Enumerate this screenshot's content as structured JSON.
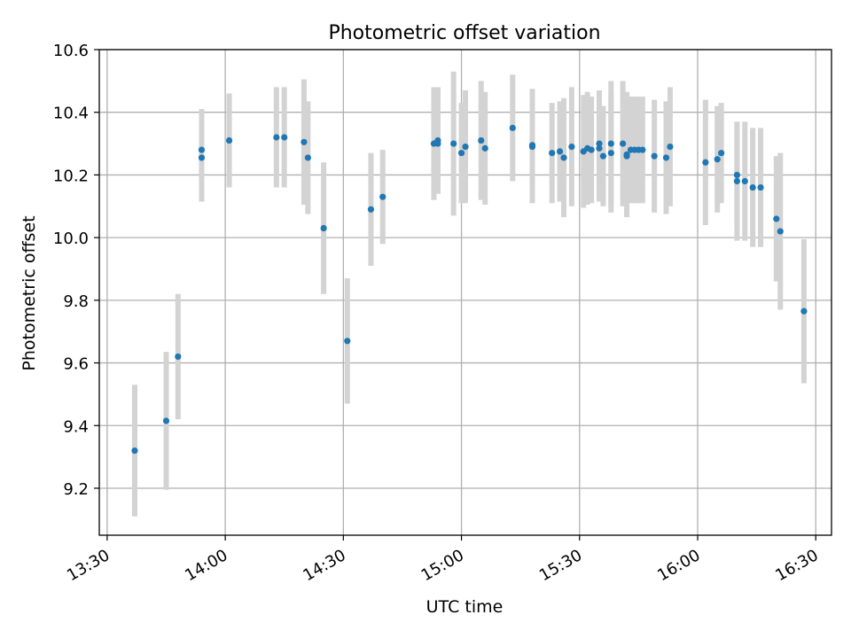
{
  "chart_data": {
    "type": "scatter",
    "title": "Photometric offset variation",
    "xlabel": "UTC time",
    "ylabel": "Photometric offset",
    "xlim": [
      "13:28",
      "16:34"
    ],
    "ylim": [
      9.05,
      10.6
    ],
    "x_ticks": [
      "13:30",
      "14:00",
      "14:30",
      "15:00",
      "15:30",
      "16:00",
      "16:30"
    ],
    "y_ticks": [
      "9.2",
      "9.4",
      "9.6",
      "9.8",
      "10.0",
      "10.2",
      "10.4",
      "10.6"
    ],
    "grid": true,
    "colors": {
      "point": "#1f77b4",
      "errorbar": "#d3d3d3",
      "grid": "#b0b0b0"
    },
    "points": [
      {
        "x": "13:37",
        "y": 9.32,
        "err": 0.21
      },
      {
        "x": "13:45",
        "y": 9.415,
        "err": 0.22
      },
      {
        "x": "13:48",
        "y": 9.62,
        "err": 0.2
      },
      {
        "x": "13:54",
        "y": 10.28,
        "err": 0.13
      },
      {
        "x": "13:54",
        "y": 10.255,
        "err": 0.14
      },
      {
        "x": "14:01",
        "y": 10.31,
        "err": 0.15
      },
      {
        "x": "14:13",
        "y": 10.32,
        "err": 0.16
      },
      {
        "x": "14:15",
        "y": 10.32,
        "err": 0.16
      },
      {
        "x": "14:20",
        "y": 10.305,
        "err": 0.2
      },
      {
        "x": "14:21",
        "y": 10.255,
        "err": 0.18
      },
      {
        "x": "14:25",
        "y": 10.03,
        "err": 0.21
      },
      {
        "x": "14:31",
        "y": 9.67,
        "err": 0.2
      },
      {
        "x": "14:37",
        "y": 10.09,
        "err": 0.18
      },
      {
        "x": "14:40",
        "y": 10.13,
        "err": 0.15
      },
      {
        "x": "14:53",
        "y": 10.3,
        "err": 0.18
      },
      {
        "x": "14:54",
        "y": 10.31,
        "err": 0.17
      },
      {
        "x": "14:54",
        "y": 10.3,
        "err": 0.16
      },
      {
        "x": "14:58",
        "y": 10.3,
        "err": 0.23
      },
      {
        "x": "15:00",
        "y": 10.27,
        "err": 0.16
      },
      {
        "x": "15:01",
        "y": 10.29,
        "err": 0.18
      },
      {
        "x": "15:05",
        "y": 10.31,
        "err": 0.19
      },
      {
        "x": "15:06",
        "y": 10.285,
        "err": 0.18
      },
      {
        "x": "15:13",
        "y": 10.35,
        "err": 0.17
      },
      {
        "x": "15:18",
        "y": 10.29,
        "err": 0.18
      },
      {
        "x": "15:18",
        "y": 10.295,
        "err": 0.18
      },
      {
        "x": "15:23",
        "y": 10.27,
        "err": 0.16
      },
      {
        "x": "15:25",
        "y": 10.275,
        "err": 0.16
      },
      {
        "x": "15:26",
        "y": 10.255,
        "err": 0.19
      },
      {
        "x": "15:28",
        "y": 10.29,
        "err": 0.19
      },
      {
        "x": "15:31",
        "y": 10.275,
        "err": 0.18
      },
      {
        "x": "15:32",
        "y": 10.285,
        "err": 0.18
      },
      {
        "x": "15:33",
        "y": 10.28,
        "err": 0.17
      },
      {
        "x": "15:35",
        "y": 10.285,
        "err": 0.17
      },
      {
        "x": "15:35",
        "y": 10.3,
        "err": 0.17
      },
      {
        "x": "15:36",
        "y": 10.26,
        "err": 0.16
      },
      {
        "x": "15:38",
        "y": 10.3,
        "err": 0.2
      },
      {
        "x": "15:38",
        "y": 10.27,
        "err": 0.19
      },
      {
        "x": "15:41",
        "y": 10.3,
        "err": 0.2
      },
      {
        "x": "15:42",
        "y": 10.265,
        "err": 0.2
      },
      {
        "x": "15:42",
        "y": 10.26,
        "err": 0.19
      },
      {
        "x": "15:43",
        "y": 10.28,
        "err": 0.17
      },
      {
        "x": "15:44",
        "y": 10.28,
        "err": 0.17
      },
      {
        "x": "15:45",
        "y": 10.28,
        "err": 0.17
      },
      {
        "x": "15:46",
        "y": 10.28,
        "err": 0.17
      },
      {
        "x": "15:49",
        "y": 10.26,
        "err": 0.18
      },
      {
        "x": "15:52",
        "y": 10.255,
        "err": 0.18
      },
      {
        "x": "15:53",
        "y": 10.29,
        "err": 0.19
      },
      {
        "x": "16:02",
        "y": 10.24,
        "err": 0.2
      },
      {
        "x": "16:05",
        "y": 10.25,
        "err": 0.17
      },
      {
        "x": "16:06",
        "y": 10.27,
        "err": 0.16
      },
      {
        "x": "16:10",
        "y": 10.18,
        "err": 0.19
      },
      {
        "x": "16:10",
        "y": 10.2,
        "err": 0.17
      },
      {
        "x": "16:12",
        "y": 10.18,
        "err": 0.19
      },
      {
        "x": "16:14",
        "y": 10.16,
        "err": 0.19
      },
      {
        "x": "16:16",
        "y": 10.16,
        "err": 0.19
      },
      {
        "x": "16:20",
        "y": 10.06,
        "err": 0.2
      },
      {
        "x": "16:21",
        "y": 10.02,
        "err": 0.25
      },
      {
        "x": "16:27",
        "y": 9.765,
        "err": 0.23
      }
    ]
  }
}
